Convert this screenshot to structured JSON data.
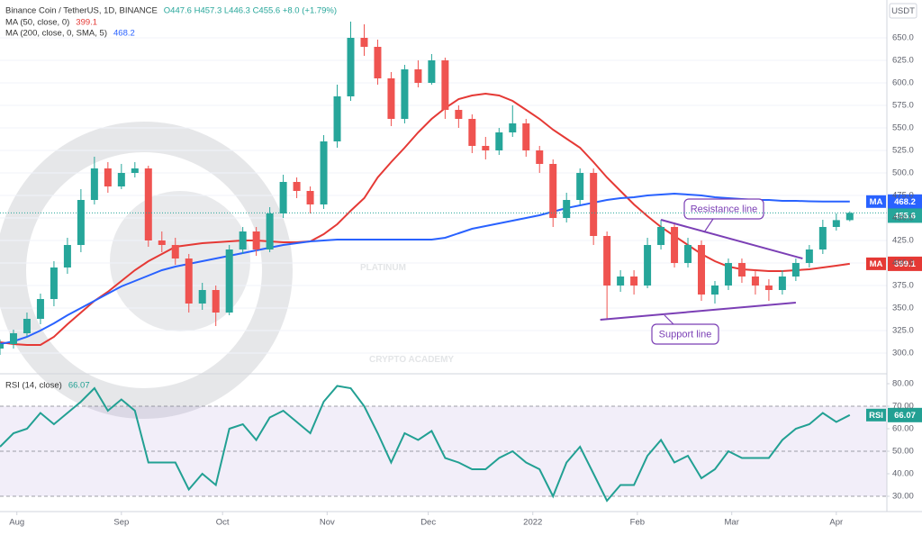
{
  "chart_data": [
    {
      "type": "candlestick",
      "title": "Binance Coin / TetherUS, 1D, BINANCE",
      "ohlc_text": "O447.6 H457.3 L446.3 C455.6 +8.0 (+1.79%)",
      "y_label": "USDT",
      "x": [
        0,
        4,
        8,
        12,
        16,
        20,
        24,
        28,
        32,
        36,
        40,
        44,
        48,
        52,
        56,
        60,
        64,
        68,
        72,
        76,
        80,
        84,
        88,
        92,
        96,
        100,
        104,
        108,
        112,
        116,
        120,
        124,
        128,
        132,
        136,
        140,
        144,
        148,
        152,
        156,
        160,
        164,
        168,
        172,
        176,
        180,
        184,
        188,
        192,
        196,
        200,
        204,
        208,
        212,
        216,
        220,
        224,
        228,
        232,
        236,
        240,
        244,
        248,
        252
      ],
      "open": [
        305,
        310,
        322,
        338,
        360,
        395,
        420,
        470,
        505,
        485,
        500,
        505,
        425,
        420,
        405,
        355,
        370,
        345,
        415,
        435,
        415,
        455,
        490,
        480,
        465,
        535,
        585,
        650,
        640,
        605,
        560,
        615,
        600,
        625,
        570,
        560,
        530,
        525,
        545,
        555,
        525,
        510,
        450,
        470,
        500,
        430,
        375,
        385,
        375,
        420,
        440,
        400,
        420,
        365,
        375,
        400,
        385,
        375,
        370,
        385,
        400,
        415,
        440,
        447.6
      ],
      "high": [
        315,
        326,
        345,
        366,
        402,
        428,
        482,
        518,
        512,
        510,
        512,
        508,
        435,
        428,
        410,
        378,
        375,
        420,
        440,
        440,
        462,
        498,
        495,
        485,
        542,
        598,
        668,
        665,
        648,
        612,
        620,
        625,
        632,
        628,
        575,
        565,
        540,
        550,
        575,
        560,
        530,
        515,
        478,
        505,
        505,
        435,
        392,
        392,
        428,
        448,
        445,
        428,
        425,
        380,
        405,
        405,
        392,
        382,
        392,
        405,
        420,
        448,
        455,
        457.3
      ],
      "low": [
        298,
        305,
        318,
        332,
        352,
        388,
        412,
        465,
        478,
        482,
        495,
        418,
        412,
        398,
        345,
        348,
        330,
        342,
        410,
        408,
        412,
        450,
        472,
        455,
        460,
        528,
        580,
        630,
        598,
        552,
        555,
        595,
        598,
        560,
        550,
        522,
        515,
        520,
        540,
        518,
        500,
        440,
        445,
        465,
        420,
        338,
        368,
        365,
        372,
        415,
        395,
        395,
        358,
        355,
        370,
        378,
        365,
        358,
        365,
        380,
        395,
        410,
        436,
        446.3
      ],
      "close": [
        310,
        322,
        338,
        360,
        395,
        420,
        470,
        505,
        485,
        500,
        505,
        425,
        420,
        405,
        355,
        370,
        345,
        415,
        435,
        415,
        455,
        490,
        480,
        465,
        535,
        585,
        650,
        640,
        605,
        560,
        615,
        600,
        625,
        570,
        560,
        530,
        525,
        545,
        555,
        525,
        510,
        450,
        470,
        500,
        430,
        375,
        385,
        375,
        420,
        440,
        400,
        420,
        365,
        375,
        400,
        385,
        375,
        370,
        385,
        400,
        415,
        440,
        447.6,
        455.6
      ],
      "up_color": "#26a69a",
      "down_color": "#ef5350",
      "series": [
        {
          "name": "MA (50, close, 0)",
          "tag": "MA",
          "color": "#e53935",
          "values": [
            312,
            310,
            309,
            309,
            318,
            332,
            345,
            358,
            368,
            380,
            392,
            402,
            410,
            418,
            420,
            422,
            423,
            424,
            425,
            425,
            424,
            423,
            423,
            424,
            432,
            443,
            458,
            472,
            495,
            512,
            528,
            545,
            560,
            572,
            582,
            586,
            588,
            586,
            580,
            570,
            560,
            548,
            538,
            528,
            512,
            495,
            480,
            465,
            452,
            440,
            430,
            420,
            410,
            402,
            396,
            393,
            392,
            391,
            391,
            392,
            393,
            395,
            397,
            399.1
          ]
        },
        {
          "name": "MA (200, close, 0, SMA, 5)",
          "tag": "MA",
          "color": "#2962ff",
          "values": [
            310,
            313,
            318,
            325,
            333,
            342,
            350,
            358,
            366,
            374,
            380,
            386,
            392,
            396,
            399,
            402,
            405,
            408,
            411,
            414,
            417,
            420,
            422,
            424,
            425,
            426,
            426,
            426,
            426,
            426,
            426,
            426,
            426,
            428,
            433,
            438,
            441,
            444,
            447,
            450,
            453,
            457,
            461,
            464,
            467,
            470,
            472,
            473,
            475,
            476,
            477,
            476,
            475,
            473,
            472,
            471,
            470,
            470,
            469,
            469,
            468.5,
            468.3,
            468.2,
            468.2
          ]
        }
      ],
      "trendlines": [
        {
          "x": [
            196,
            238
          ],
          "y": [
            448,
            405
          ],
          "color": "#7b3fb5"
        },
        {
          "x": [
            178,
            236
          ],
          "y": [
            337,
            356
          ],
          "color": "#7b3fb5"
        }
      ],
      "annotations": [
        {
          "text": "Resistance line"
        },
        {
          "text": "Support line"
        }
      ],
      "watermark": {
        "line1": "PLATINUM",
        "line2": "CRYPTO ACADEMY"
      },
      "xlim": [
        0,
        263
      ],
      "ylim": [
        280,
        692
      ],
      "yticks": [
        {
          "value": 300,
          "label": "300.0"
        },
        {
          "value": 325,
          "label": "325.0"
        },
        {
          "value": 350,
          "label": "350.0"
        },
        {
          "value": 375,
          "label": "375.0"
        },
        {
          "value": 400,
          "label": "400.0"
        },
        {
          "value": 425,
          "label": "425.0"
        },
        {
          "value": 450,
          "label": "450.0"
        },
        {
          "value": 475,
          "label": "475.0"
        },
        {
          "value": 500,
          "label": "500.0"
        },
        {
          "value": 525,
          "label": "525.0"
        },
        {
          "value": 550,
          "label": "550.0"
        },
        {
          "value": 575,
          "label": "575.0"
        },
        {
          "value": 600,
          "label": "600.0"
        },
        {
          "value": 625,
          "label": "625.0"
        },
        {
          "value": 650,
          "label": "650.0"
        }
      ],
      "grid": true
    },
    {
      "type": "line",
      "title": "RSI (14, close)",
      "x": [
        0,
        4,
        8,
        12,
        16,
        20,
        24,
        28,
        32,
        36,
        40,
        44,
        48,
        52,
        56,
        60,
        64,
        68,
        72,
        76,
        80,
        84,
        88,
        92,
        96,
        100,
        104,
        108,
        112,
        116,
        120,
        124,
        128,
        132,
        136,
        140,
        144,
        148,
        152,
        156,
        160,
        164,
        168,
        172,
        176,
        180,
        184,
        188,
        192,
        196,
        200,
        204,
        208,
        212,
        216,
        220,
        224,
        228,
        232,
        236,
        240,
        244,
        248,
        252
      ],
      "series": [
        {
          "name": "RSI",
          "color": "#22a093",
          "values": [
            52,
            58,
            60,
            67,
            62,
            67,
            72,
            78,
            68,
            73,
            68,
            45,
            45,
            45,
            33,
            40,
            35,
            60,
            62,
            55,
            65,
            68,
            63,
            58,
            72,
            79,
            78,
            70,
            58,
            45,
            58,
            55,
            59,
            47,
            45,
            42,
            42,
            47,
            50,
            45,
            42,
            30,
            45,
            52,
            40,
            28,
            35,
            35,
            48,
            55,
            45,
            48,
            38,
            42,
            50,
            47,
            47,
            47,
            55,
            60,
            62,
            67,
            63,
            66.07
          ]
        }
      ],
      "levels": [
        30,
        50,
        70
      ],
      "band_color": "#7e57c2",
      "xlim": [
        0,
        263
      ],
      "ylim": [
        23.2,
        83.2
      ],
      "yticks": [
        {
          "value": 30,
          "label": "30.00"
        },
        {
          "value": 40,
          "label": "40.00"
        },
        {
          "value": 50,
          "label": "50.00"
        },
        {
          "value": 60,
          "label": "60.00"
        },
        {
          "value": 70,
          "label": "70.00"
        },
        {
          "value": 80,
          "label": "80.00"
        }
      ],
      "xticks": [
        {
          "value": 5,
          "label": "Aug"
        },
        {
          "value": 36,
          "label": "Sep"
        },
        {
          "value": 66,
          "label": "Oct"
        },
        {
          "value": 97,
          "label": "Nov"
        },
        {
          "value": 127,
          "label": "Dec"
        },
        {
          "value": 158,
          "label": "2022"
        },
        {
          "value": 189,
          "label": "Feb"
        },
        {
          "value": 217,
          "label": "Mar"
        },
        {
          "value": 248,
          "label": "Apr"
        }
      ]
    }
  ]
}
